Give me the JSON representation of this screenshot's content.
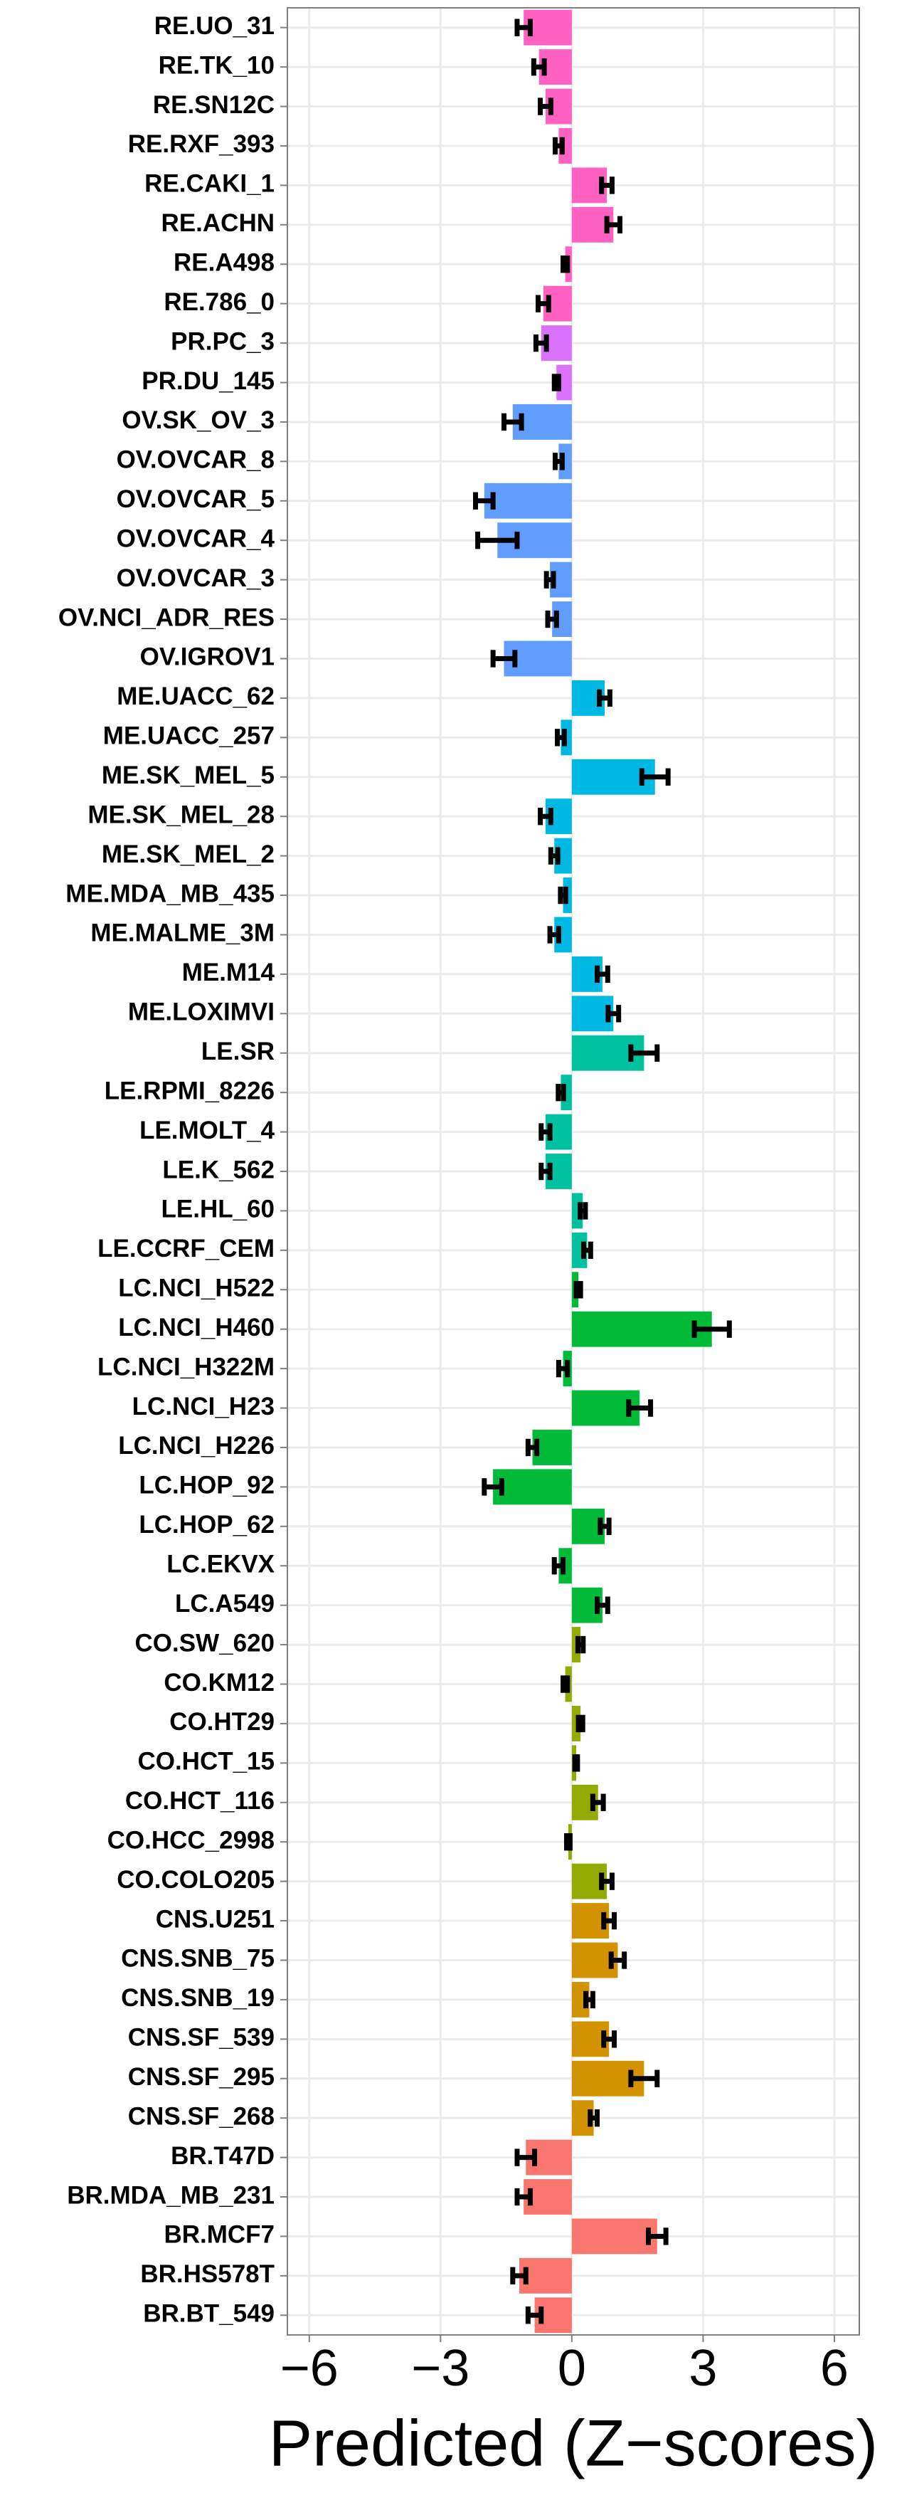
{
  "chart_data": {
    "type": "barh_error",
    "xlabel": "Predicted (Z−scores)",
    "categories": [
      "RE.UO_31",
      "RE.TK_10",
      "RE.SN12C",
      "RE.RXF_393",
      "RE.CAKI_1",
      "RE.ACHN",
      "RE.A498",
      "RE.786_0",
      "PR.PC_3",
      "PR.DU_145",
      "OV.SK_OV_3",
      "OV.OVCAR_8",
      "OV.OVCAR_5",
      "OV.OVCAR_4",
      "OV.OVCAR_3",
      "OV.NCI_ADR_RES",
      "OV.IGROV1",
      "ME.UACC_62",
      "ME.UACC_257",
      "ME.SK_MEL_5",
      "ME.SK_MEL_28",
      "ME.SK_MEL_2",
      "ME.MDA_MB_435",
      "ME.MALME_3M",
      "ME.M14",
      "ME.LOXIMVI",
      "LE.SR",
      "LE.RPMI_8226",
      "LE.MOLT_4",
      "LE.K_562",
      "LE.HL_60",
      "LE.CCRF_CEM",
      "LC.NCI_H522",
      "LC.NCI_H460",
      "LC.NCI_H322M",
      "LC.NCI_H23",
      "LC.NCI_H226",
      "LC.HOP_92",
      "LC.HOP_62",
      "LC.EKVX",
      "LC.A549",
      "CO.SW_620",
      "CO.KM12",
      "CO.HT29",
      "CO.HCT_15",
      "CO.HCT_116",
      "CO.HCC_2998",
      "CO.COLO205",
      "CNS.U251",
      "CNS.SNB_75",
      "CNS.SNB_19",
      "CNS.SF_539",
      "CNS.SF_295",
      "CNS.SF_268",
      "BR.T47D",
      "BR.MDA_MB_231",
      "BR.MCF7",
      "BR.HS578T",
      "BR.BT_549"
    ],
    "values": [
      -1.1,
      -0.75,
      -0.6,
      -0.3,
      0.8,
      0.95,
      -0.15,
      -0.65,
      -0.7,
      -0.35,
      -1.35,
      -0.3,
      -2.0,
      -1.7,
      -0.5,
      -0.45,
      -1.55,
      0.75,
      -0.25,
      1.9,
      -0.6,
      -0.4,
      -0.2,
      -0.4,
      0.7,
      0.95,
      1.65,
      -0.25,
      -0.6,
      -0.6,
      0.25,
      0.35,
      0.15,
      3.2,
      -0.2,
      1.55,
      -0.9,
      -1.8,
      0.75,
      -0.3,
      0.7,
      0.2,
      -0.15,
      0.2,
      0.1,
      0.6,
      -0.08,
      0.8,
      0.85,
      1.05,
      0.4,
      0.85,
      1.65,
      0.5,
      -1.05,
      -1.1,
      1.95,
      -1.2,
      -0.85
    ],
    "errors": [
      0.15,
      0.12,
      0.12,
      0.08,
      0.12,
      0.15,
      0.05,
      0.12,
      0.12,
      0.05,
      0.2,
      0.08,
      0.2,
      0.45,
      0.08,
      0.1,
      0.25,
      0.12,
      0.08,
      0.3,
      0.12,
      0.08,
      0.06,
      0.1,
      0.12,
      0.12,
      0.3,
      0.06,
      0.1,
      0.1,
      0.06,
      0.08,
      0.05,
      0.4,
      0.1,
      0.25,
      0.1,
      0.2,
      0.1,
      0.1,
      0.12,
      0.06,
      0.05,
      0.05,
      0.03,
      0.12,
      0.04,
      0.12,
      0.12,
      0.15,
      0.08,
      0.12,
      0.3,
      0.08,
      0.2,
      0.15,
      0.2,
      0.15,
      0.15
    ],
    "colors": [
      "#FF61C3",
      "#FF61C3",
      "#FF61C3",
      "#FF61C3",
      "#FF61C3",
      "#FF61C3",
      "#FF61C3",
      "#FF61C3",
      "#DB72FB",
      "#DB72FB",
      "#619CFF",
      "#619CFF",
      "#619CFF",
      "#619CFF",
      "#619CFF",
      "#619CFF",
      "#619CFF",
      "#00B9E3",
      "#00B9E3",
      "#00B9E3",
      "#00B9E3",
      "#00B9E3",
      "#00B9E3",
      "#00B9E3",
      "#00B9E3",
      "#00B9E3",
      "#00C19F",
      "#00C19F",
      "#00C19F",
      "#00C19F",
      "#00C19F",
      "#00C19F",
      "#00BA38",
      "#00BA38",
      "#00BA38",
      "#00BA38",
      "#00BA38",
      "#00BA38",
      "#00BA38",
      "#00BA38",
      "#00BA38",
      "#93AA00",
      "#93AA00",
      "#93AA00",
      "#93AA00",
      "#93AA00",
      "#93AA00",
      "#93AA00",
      "#D39200",
      "#D39200",
      "#D39200",
      "#D39200",
      "#D39200",
      "#D39200",
      "#F8766D",
      "#F8766D",
      "#F8766D",
      "#F8766D",
      "#F8766D"
    ],
    "xlim": [
      -6.5,
      6.57
    ],
    "xticks": [
      {
        "value": -6,
        "label": "−6"
      },
      {
        "value": -3,
        "label": "−3"
      },
      0,
      3,
      6
    ],
    "grid": true
  }
}
